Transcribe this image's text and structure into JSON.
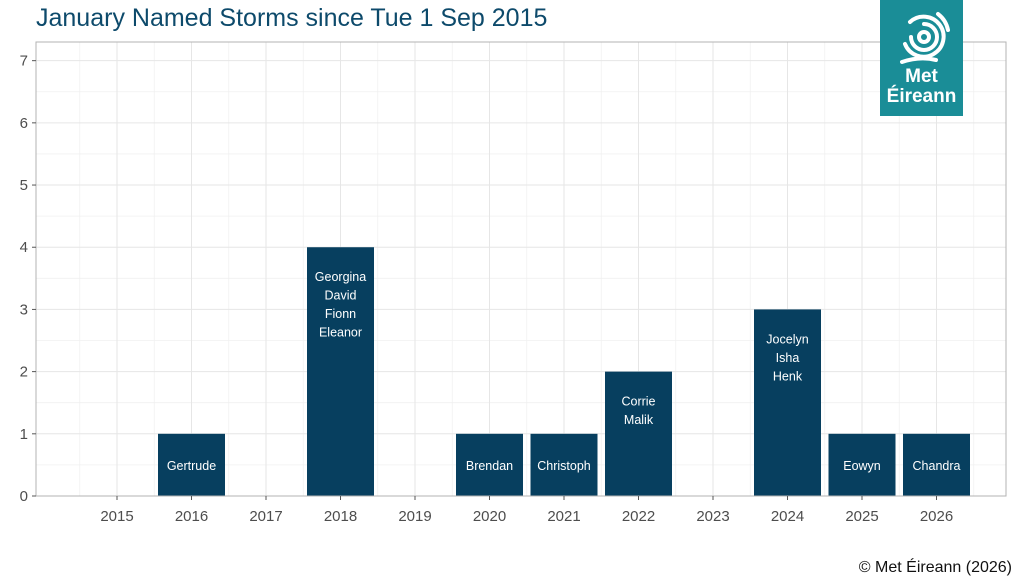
{
  "logo": {
    "line1": "Met",
    "line2": "Éireann",
    "icon": "met-eireann-swirl-icon"
  },
  "copyright": "© Met Éireann (2026)",
  "colors": {
    "bar": "#073f5f",
    "title": "#0d4a6b",
    "logo_bg": "#1a8d97",
    "grid": "#e6e6e6",
    "bar_label": "#ffffff"
  },
  "chart_data": {
    "type": "bar",
    "title": "January Named Storms since Tue 1 Sep 2015",
    "xlabel": "",
    "ylabel": "",
    "ylim": [
      0,
      7.3
    ],
    "yticks": [
      0,
      1,
      2,
      3,
      4,
      5,
      6,
      7
    ],
    "categories": [
      "2015",
      "2016",
      "2017",
      "2018",
      "2019",
      "2020",
      "2021",
      "2022",
      "2023",
      "2024",
      "2025",
      "2026"
    ],
    "values": [
      0,
      1,
      0,
      4,
      0,
      1,
      1,
      2,
      0,
      3,
      1,
      1
    ],
    "bar_labels": [
      [],
      [
        "Gertrude"
      ],
      [],
      [
        "Georgina",
        "David",
        "Fionn",
        "Eleanor"
      ],
      [],
      [
        "Brendan"
      ],
      [
        "Christoph"
      ],
      [
        "Corrie",
        "Malik"
      ],
      [],
      [
        "Jocelyn",
        "Isha",
        "Henk"
      ],
      [
        "Eowyn"
      ],
      [
        "Chandra"
      ]
    ],
    "grid": true,
    "legend": "none"
  }
}
